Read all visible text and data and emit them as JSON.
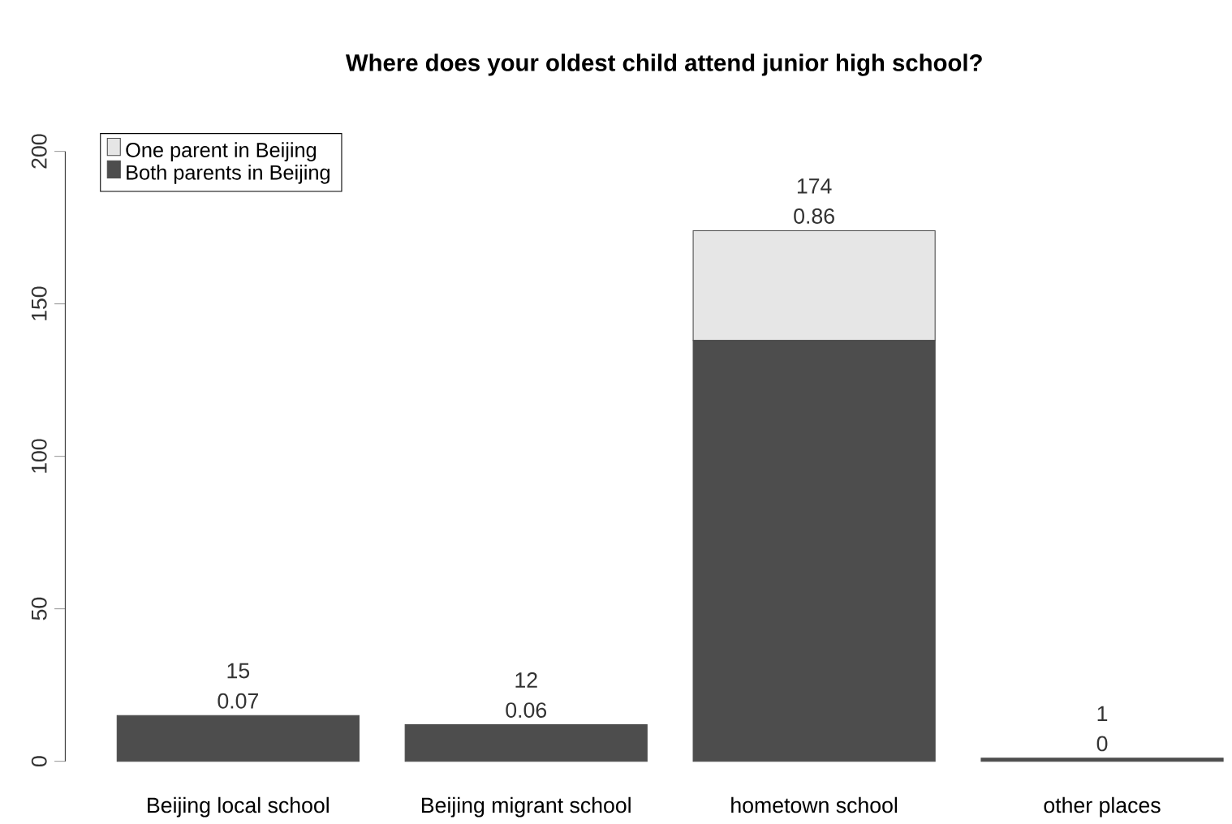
{
  "chart_data": {
    "type": "bar",
    "title": "Where does your oldest child attend junior high school?",
    "categories": [
      "Beijing local school",
      "Beijing migrant school",
      "hometown school",
      "other places"
    ],
    "stacked": true,
    "series": [
      {
        "name": "Both parents in Beijing",
        "color": "#4d4d4d",
        "values": [
          15,
          12,
          138,
          1
        ]
      },
      {
        "name": "One parent in Beijing",
        "color": "#e6e6e6",
        "values": [
          0,
          0,
          36,
          0
        ]
      }
    ],
    "totals": [
      "15",
      "12",
      "174",
      "1"
    ],
    "annotations": [
      {
        "text": "0.07",
        "x": "Beijing local school",
        "y": 15
      },
      {
        "text": "0.06",
        "x": "Beijing migrant school",
        "y": 12
      },
      {
        "text": "0.86",
        "x": "hometown school",
        "y": 174
      },
      {
        "text": "0",
        "x": "other places",
        "y": 1
      }
    ],
    "ylim": [
      0,
      200
    ],
    "yticks": [
      0,
      50,
      100,
      150,
      200
    ],
    "legend": "top left",
    "grid": false
  }
}
